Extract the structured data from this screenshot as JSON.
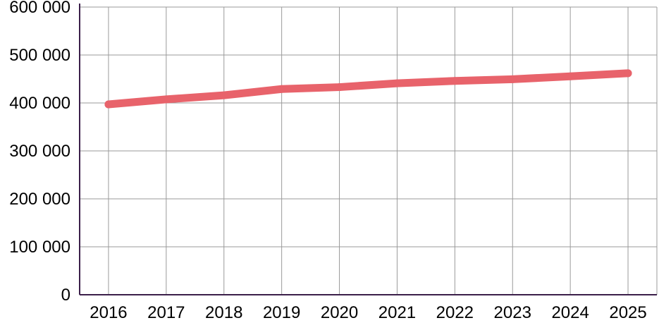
{
  "chart_data": {
    "type": "line",
    "title": "",
    "xlabel": "",
    "ylabel": "",
    "x": [
      "2016",
      "2017",
      "2018",
      "2019",
      "2020",
      "2021",
      "2022",
      "2023",
      "2024",
      "2025"
    ],
    "series": [
      {
        "values": [
          397000,
          407500,
          416000,
          429000,
          433000,
          441000,
          446000,
          449500,
          455500,
          462000
        ],
        "color": "#e8636b"
      }
    ],
    "ylim": [
      0,
      600000
    ],
    "yticks": [
      0,
      100000,
      200000,
      300000,
      400000,
      500000,
      600000
    ],
    "ytick_labels": [
      "0",
      "100 000",
      "200 000",
      "300 000",
      "400 000",
      "500 000",
      "600 000"
    ],
    "grid": true,
    "legend": "none",
    "axis_color": "#3b1f4a",
    "grid_color": "#9a9a9a"
  }
}
